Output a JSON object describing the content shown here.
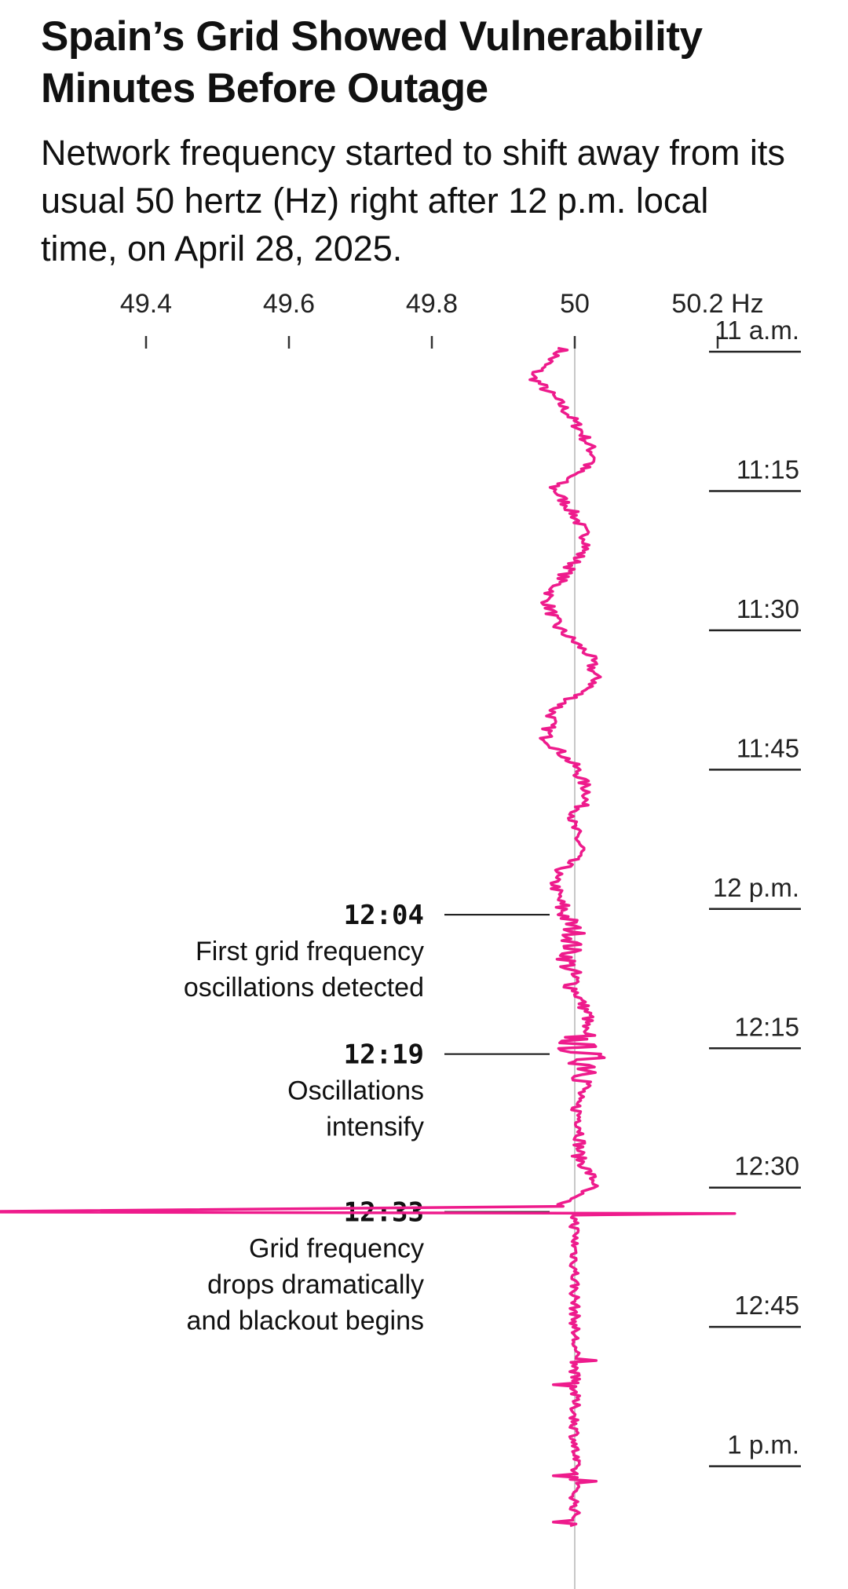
{
  "header": {
    "title": "Spain’s Grid Showed Vulnerability Minutes Before Outage",
    "subtitle": "Network frequency started to shift away from its usual 50 hertz (Hz) right after 12 p.m. local time, on April 28, 2025."
  },
  "chart_data": {
    "type": "line",
    "orientation": "vertical-time",
    "x_axis": {
      "ticks": [
        49.4,
        49.6,
        49.8,
        50,
        50.2
      ],
      "tick_labels": [
        "49.4",
        "49.6",
        "49.8",
        "50",
        "50.2 Hz"
      ],
      "range": [
        49.3,
        50.3
      ],
      "reference_line": 50
    },
    "y_axis": {
      "tick_labels": [
        "11 a.m.",
        "11:15",
        "11:30",
        "11:45",
        "12 p.m.",
        "12:15",
        "12:30",
        "12:45",
        "1 p.m."
      ],
      "tick_minutes": [
        0,
        15,
        30,
        45,
        60,
        75,
        90,
        105,
        120
      ],
      "range_minutes": [
        0,
        130
      ]
    },
    "series": [
      {
        "color": "#ee1b8c",
        "minutes": [
          3,
          6,
          9,
          12,
          15,
          18,
          21,
          24,
          27,
          30,
          33,
          36,
          39,
          42,
          45,
          48,
          51,
          54,
          57,
          60,
          63,
          66,
          69,
          72,
          75,
          78,
          81,
          84,
          87,
          90,
          93,
          95
        ],
        "values": [
          49.985,
          49.94,
          49.98,
          50.01,
          50.03,
          49.97,
          50.0,
          50.02,
          49.99,
          49.96,
          49.975,
          50.02,
          50.03,
          49.97,
          49.96,
          50.0,
          50.02,
          49.995,
          50.01,
          49.97,
          49.98,
          50.0,
          49.99,
          50.0,
          50.02,
          50.0,
          50.03,
          50.0,
          50.01,
          50.005,
          50.03,
          49.98
        ]
      }
    ],
    "outage": {
      "minute": 96,
      "min_value": 49.15,
      "max_value": 50.18
    },
    "annotations": [
      {
        "time": "12:04",
        "minute": 64,
        "lines": [
          "First grid frequency",
          "oscillations detected"
        ]
      },
      {
        "time": "12:19",
        "minute": 79,
        "lines": [
          "Oscillations",
          "intensify"
        ]
      },
      {
        "time": "12:33",
        "minute": 96,
        "lines": [
          "Grid frequency",
          "drops dramatically",
          "and blackout begins"
        ]
      }
    ]
  }
}
